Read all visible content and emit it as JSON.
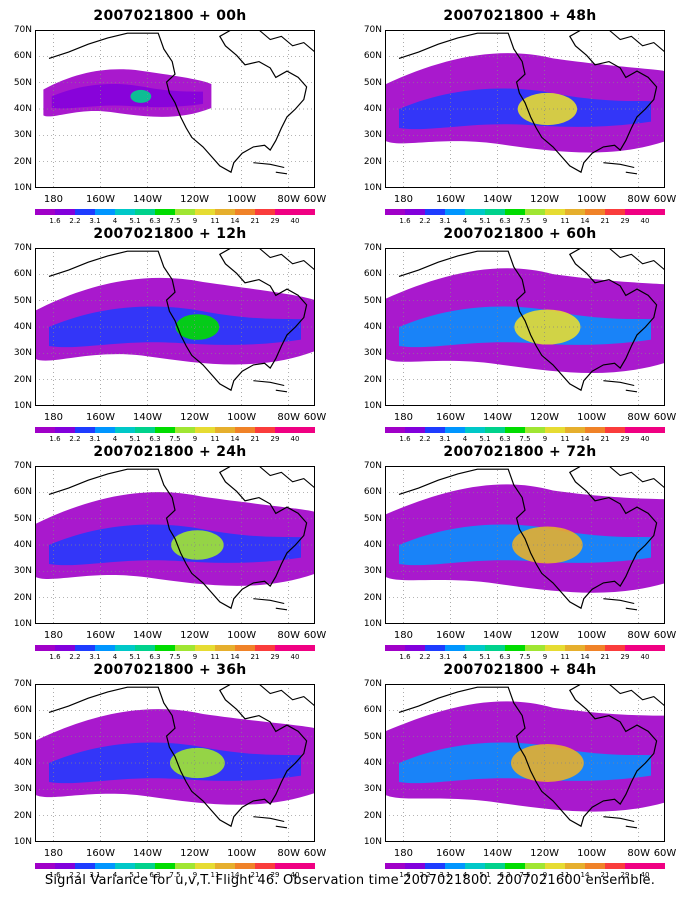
{
  "panels": [
    {
      "title": "2007021800 + 00h"
    },
    {
      "title": "2007021800 + 48h"
    },
    {
      "title": "2007021800 + 12h"
    },
    {
      "title": "2007021800 + 60h"
    },
    {
      "title": "2007021800 + 24h"
    },
    {
      "title": "2007021800 + 72h"
    },
    {
      "title": "2007021800 + 36h"
    },
    {
      "title": "2007021800 + 84h"
    }
  ],
  "axes": {
    "lat_labels": [
      "70N",
      "60N",
      "50N",
      "40N",
      "30N",
      "20N",
      "10N"
    ],
    "lon_labels": [
      "180",
      "160W",
      "140W",
      "120W",
      "100W",
      "80W",
      "60W"
    ]
  },
  "colorbar": {
    "labels": [
      "1.6",
      "2.2",
      "3.1",
      "4",
      "5.1",
      "6.3",
      "7.5",
      "9",
      "11",
      "14",
      "21",
      "29",
      "40"
    ],
    "colors": [
      "#a000c8",
      "#8200dc",
      "#1e3cff",
      "#0096ff",
      "#00c8c8",
      "#00d28c",
      "#00dc00",
      "#a0e632",
      "#e6dc32",
      "#e6af2d",
      "#f08228",
      "#fa3c3c",
      "#f00082"
    ]
  },
  "footer": "Signal Variance for u,v,T. Flight 46. Observation time 2007021800. 2007021600 ensemble."
}
